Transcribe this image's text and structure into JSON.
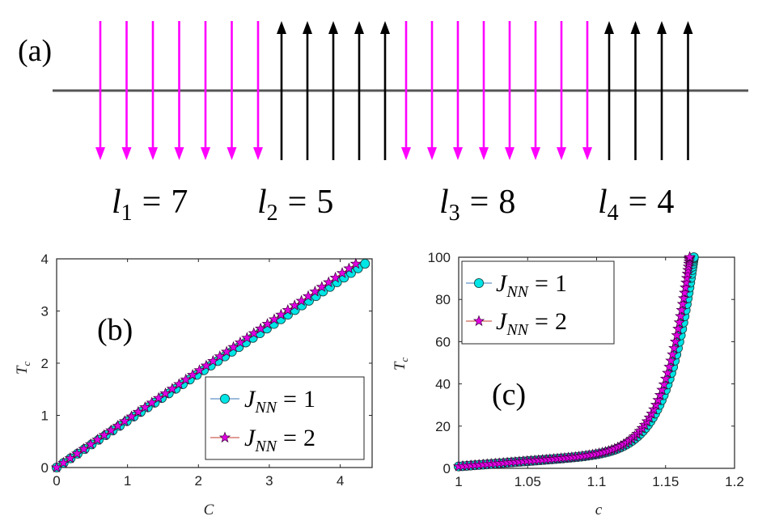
{
  "panel_a": {
    "label": "(a)",
    "domains": [
      {
        "var": "l",
        "sub": "1",
        "value": "7",
        "n": 7,
        "direction": "down",
        "color": "#ff00ff"
      },
      {
        "var": "l",
        "sub": "2",
        "value": "5",
        "n": 5,
        "direction": "up",
        "color": "#000000"
      },
      {
        "var": "l",
        "sub": "3",
        "value": "8",
        "n": 8,
        "direction": "down",
        "color": "#ff00ff"
      },
      {
        "var": "l",
        "sub": "4",
        "value": "4",
        "n": 4,
        "direction": "up",
        "color": "#000000"
      }
    ],
    "equals": "="
  },
  "chart_data": [
    {
      "panel": "(b)",
      "type": "line",
      "xlabel": "C",
      "ylabel": "T",
      "ylabel_sub": "c",
      "xlim": [
        0,
        4.45
      ],
      "ylim": [
        0,
        4
      ],
      "xticks": [
        "0",
        "1",
        "2",
        "3",
        "4"
      ],
      "yticks": [
        "0",
        "1",
        "2",
        "3",
        "4"
      ],
      "series": [
        {
          "name": "J_NN = 1",
          "marker": "circle",
          "color": "#00e5e5",
          "slope": 0.898,
          "x_max": 4.35,
          "points": 45
        },
        {
          "name": "J_NN = 2",
          "marker": "star",
          "color": "#e000e0",
          "slope": 0.925,
          "x_max": 4.22,
          "points": 45
        }
      ],
      "legend_position": "bottom-right"
    },
    {
      "panel": "(c)",
      "type": "line",
      "xlabel": "c",
      "ylabel": "T",
      "ylabel_sub": "c",
      "xlim": [
        1,
        1.2
      ],
      "ylim": [
        0,
        100
      ],
      "xticks": [
        "1",
        "1.05",
        "1.1",
        "1.15",
        "1.2"
      ],
      "yticks": [
        "0",
        "20",
        "40",
        "60",
        "80",
        "100"
      ],
      "series": [
        {
          "name": "J_NN = 1",
          "marker": "circle",
          "color": "#00e5e5",
          "c_max": 1.1705,
          "points": 90
        },
        {
          "name": "J_NN = 2",
          "marker": "star",
          "color": "#e000e0",
          "c_max": 1.1675,
          "points": 90
        }
      ],
      "legend_position": "top-left"
    }
  ],
  "legend": {
    "var": "J",
    "sub": "NN",
    "entries": [
      {
        "value": "1"
      },
      {
        "value": "2"
      }
    ]
  }
}
